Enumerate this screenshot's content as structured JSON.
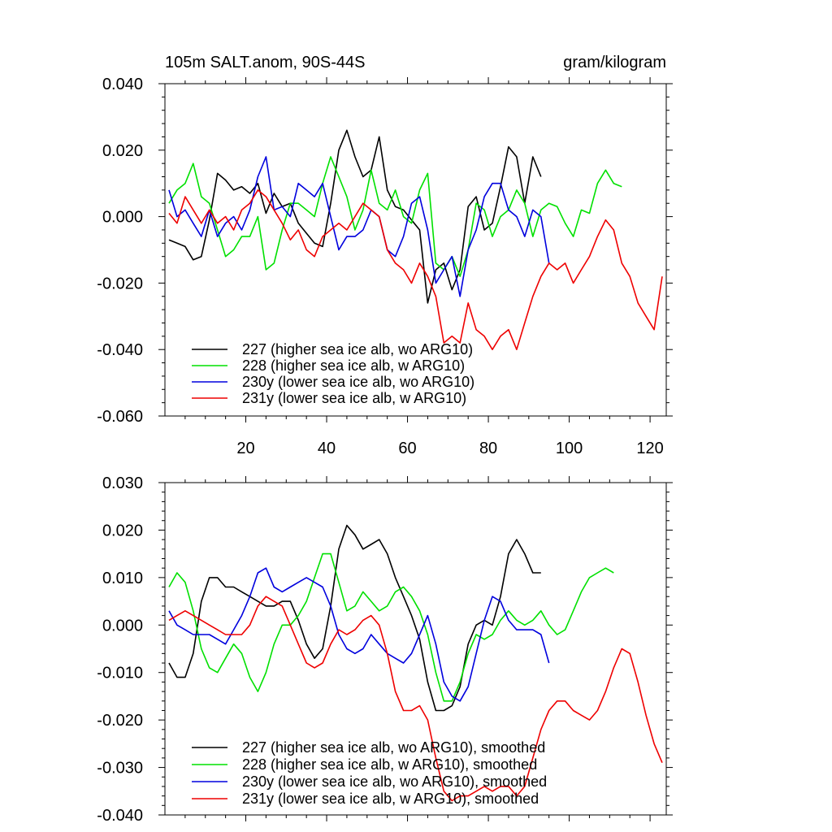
{
  "title_left": "105m SALT.anom, 90S-44S",
  "title_right": "gram/kilogram",
  "chart_data": [
    {
      "type": "line",
      "name": "raw",
      "xlim": [
        0,
        124
      ],
      "ylim": [
        -0.06,
        0.04
      ],
      "yticks": [
        -0.06,
        -0.04,
        -0.02,
        0.0,
        0.02,
        0.04
      ],
      "ytick_labels": [
        "-0.060",
        "-0.040",
        "-0.020",
        "0.000",
        "0.020",
        "0.040"
      ],
      "xticks": [
        20,
        40,
        60,
        80,
        100,
        120
      ],
      "xtick_labels": [
        "20",
        "40",
        "60",
        "80",
        "100",
        "120"
      ],
      "series": [
        {
          "name": "227 (higher sea ice alb, wo ARG10)",
          "color": "#000000",
          "x": [
            1,
            3,
            5,
            7,
            9,
            11,
            13,
            15,
            17,
            19,
            21,
            23,
            25,
            27,
            29,
            31,
            33,
            35,
            37,
            39,
            41,
            43,
            45,
            47,
            49,
            51,
            53,
            55,
            57,
            59,
            61,
            63,
            65,
            67,
            69,
            71,
            73,
            75,
            77,
            79,
            81,
            83,
            85,
            87,
            89,
            91,
            93
          ],
          "y": [
            -0.007,
            -0.008,
            -0.009,
            -0.013,
            -0.012,
            -0.001,
            0.013,
            0.011,
            0.008,
            0.009,
            0.007,
            0.01,
            0.001,
            0.007,
            0.003,
            0.004,
            -0.002,
            -0.005,
            -0.008,
            -0.009,
            0.004,
            0.02,
            0.026,
            0.018,
            0.012,
            0.014,
            0.024,
            0.008,
            0.003,
            0.002,
            -0.001,
            -0.004,
            -0.026,
            -0.016,
            -0.014,
            -0.022,
            -0.016,
            0.003,
            0.006,
            -0.004,
            -0.002,
            0.009,
            0.021,
            0.018,
            0.004,
            0.018,
            0.012
          ]
        },
        {
          "name": "228 (higher sea ice alb, w ARG10)",
          "color": "#00e000",
          "x": [
            1,
            3,
            5,
            7,
            9,
            11,
            13,
            15,
            17,
            19,
            21,
            23,
            25,
            27,
            29,
            31,
            33,
            35,
            37,
            39,
            41,
            43,
            45,
            47,
            49,
            51,
            53,
            55,
            57,
            59,
            61,
            63,
            65,
            67,
            69,
            71,
            73,
            75,
            77,
            79,
            81,
            83,
            85,
            87,
            89,
            91,
            93,
            95,
            97,
            99,
            101,
            103,
            105,
            107,
            109,
            111,
            113
          ],
          "y": [
            0.004,
            0.008,
            0.01,
            0.016,
            0.006,
            0.004,
            -0.004,
            -0.012,
            -0.01,
            -0.006,
            -0.006,
            0.0,
            -0.016,
            -0.014,
            -0.004,
            0.004,
            0.004,
            0.002,
            0.0,
            0.01,
            0.018,
            0.012,
            0.006,
            -0.004,
            0.002,
            0.014,
            0.004,
            0.002,
            0.008,
            0.0,
            -0.002,
            0.008,
            0.013,
            -0.014,
            -0.016,
            -0.012,
            -0.018,
            -0.01,
            0.004,
            0.002,
            -0.006,
            0.0,
            0.002,
            0.008,
            0.004,
            -0.006,
            0.002,
            0.004,
            0.003,
            -0.002,
            -0.006,
            0.002,
            0.001,
            0.01,
            0.014,
            0.01,
            0.009
          ]
        },
        {
          "name": "230y (lower sea ice alb, wo ARG10)",
          "color": "#0000dd",
          "x": [
            1,
            3,
            5,
            7,
            9,
            11,
            13,
            15,
            17,
            19,
            21,
            23,
            25,
            27,
            29,
            31,
            33,
            35,
            37,
            39,
            41,
            43,
            45,
            47,
            49,
            51,
            53,
            55,
            57,
            59,
            61,
            63,
            65,
            67,
            69,
            71,
            73,
            75,
            77,
            79,
            81,
            83,
            85,
            87,
            89,
            91,
            93,
            95
          ],
          "y": [
            0.008,
            0.0,
            0.002,
            -0.002,
            -0.006,
            0.002,
            -0.006,
            -0.002,
            0.0,
            -0.004,
            0.002,
            0.012,
            0.018,
            0.002,
            0.003,
            0.0,
            0.01,
            0.008,
            0.006,
            0.01,
            0.0,
            -0.01,
            -0.006,
            -0.006,
            -0.004,
            0.002,
            0.0,
            -0.01,
            -0.012,
            -0.006,
            0.004,
            0.006,
            -0.004,
            -0.02,
            -0.016,
            -0.012,
            -0.024,
            -0.01,
            -0.004,
            0.006,
            0.01,
            0.01,
            0.002,
            0.0,
            -0.006,
            0.002,
            0.0,
            -0.014
          ]
        },
        {
          "name": "231y (lower sea ice alb, w ARG10)",
          "color": "#ee0000",
          "x": [
            1,
            3,
            5,
            7,
            9,
            11,
            13,
            15,
            17,
            19,
            21,
            23,
            25,
            27,
            29,
            31,
            33,
            35,
            37,
            39,
            41,
            43,
            45,
            47,
            49,
            51,
            53,
            55,
            57,
            59,
            61,
            63,
            65,
            67,
            69,
            71,
            73,
            75,
            77,
            79,
            81,
            83,
            85,
            87,
            89,
            91,
            93,
            95,
            97,
            99,
            101,
            103,
            105,
            107,
            109,
            111,
            113,
            115,
            117,
            119,
            121,
            123
          ],
          "y": [
            0.001,
            -0.002,
            0.006,
            0.002,
            -0.002,
            0.002,
            -0.002,
            0.0,
            -0.004,
            0.002,
            0.004,
            0.008,
            0.006,
            0.002,
            -0.002,
            -0.007,
            -0.004,
            -0.01,
            -0.012,
            -0.006,
            -0.004,
            -0.002,
            -0.004,
            0.0,
            0.004,
            0.002,
            0.0,
            -0.01,
            -0.014,
            -0.016,
            -0.02,
            -0.014,
            -0.018,
            -0.024,
            -0.038,
            -0.036,
            -0.038,
            -0.026,
            -0.034,
            -0.036,
            -0.04,
            -0.036,
            -0.034,
            -0.04,
            -0.032,
            -0.024,
            -0.018,
            -0.014,
            -0.016,
            -0.014,
            -0.02,
            -0.016,
            -0.012,
            -0.006,
            -0.001,
            -0.004,
            -0.014,
            -0.018,
            -0.026,
            -0.03,
            -0.034,
            -0.018
          ]
        }
      ]
    },
    {
      "type": "line",
      "name": "smoothed",
      "xlim": [
        0,
        124
      ],
      "ylim": [
        -0.04,
        0.03
      ],
      "yticks": [
        -0.04,
        -0.03,
        -0.02,
        -0.01,
        0.0,
        0.01,
        0.02,
        0.03
      ],
      "ytick_labels": [
        "-0.040",
        "-0.030",
        "-0.020",
        "-0.010",
        "0.000",
        "0.010",
        "0.020",
        "0.030"
      ],
      "xticks": [
        20,
        40,
        60,
        80,
        100,
        120
      ],
      "xtick_labels": [],
      "series": [
        {
          "name": "227 (higher sea ice alb, wo ARG10), smoothed",
          "color": "#000000",
          "x": [
            1,
            3,
            5,
            7,
            9,
            11,
            13,
            15,
            17,
            19,
            21,
            23,
            25,
            27,
            29,
            31,
            33,
            35,
            37,
            39,
            41,
            43,
            45,
            47,
            49,
            51,
            53,
            55,
            57,
            59,
            61,
            63,
            65,
            67,
            69,
            71,
            73,
            75,
            77,
            79,
            81,
            83,
            85,
            87,
            89,
            91,
            93
          ],
          "y": [
            -0.008,
            -0.011,
            -0.011,
            -0.006,
            0.005,
            0.01,
            0.01,
            0.008,
            0.008,
            0.007,
            0.006,
            0.005,
            0.004,
            0.004,
            0.005,
            0.005,
            0.001,
            -0.004,
            -0.007,
            -0.005,
            0.004,
            0.016,
            0.021,
            0.019,
            0.016,
            0.017,
            0.018,
            0.015,
            0.01,
            0.006,
            0.002,
            -0.003,
            -0.012,
            -0.018,
            -0.018,
            -0.017,
            -0.013,
            -0.004,
            0.0,
            0.001,
            0.0,
            0.006,
            0.015,
            0.018,
            0.015,
            0.011,
            0.011
          ]
        },
        {
          "name": "228 (higher sea ice alb, w ARG10), smoothed",
          "color": "#00e000",
          "x": [
            1,
            3,
            5,
            7,
            9,
            11,
            13,
            15,
            17,
            19,
            21,
            23,
            25,
            27,
            29,
            31,
            33,
            35,
            37,
            39,
            41,
            43,
            45,
            47,
            49,
            51,
            53,
            55,
            57,
            59,
            61,
            63,
            65,
            67,
            69,
            71,
            73,
            75,
            77,
            79,
            81,
            83,
            85,
            87,
            89,
            91,
            93,
            95,
            97,
            99,
            101,
            103,
            105,
            107,
            109,
            111
          ],
          "y": [
            0.008,
            0.011,
            0.009,
            0.003,
            -0.005,
            -0.009,
            -0.01,
            -0.007,
            -0.004,
            -0.006,
            -0.011,
            -0.014,
            -0.01,
            -0.004,
            0.0,
            0.0,
            0.002,
            0.005,
            0.01,
            0.015,
            0.015,
            0.009,
            0.003,
            0.004,
            0.007,
            0.005,
            0.003,
            0.004,
            0.007,
            0.008,
            0.006,
            0.003,
            -0.002,
            -0.01,
            -0.016,
            -0.016,
            -0.012,
            -0.006,
            -0.002,
            -0.003,
            -0.002,
            0.001,
            0.003,
            0.001,
            0.0,
            0.001,
            0.003,
            0.0,
            -0.002,
            -0.001,
            0.003,
            0.007,
            0.01,
            0.011,
            0.012,
            0.011
          ]
        },
        {
          "name": "230y (lower sea ice alb, wo ARG10), smoothed",
          "color": "#0000dd",
          "x": [
            1,
            3,
            5,
            7,
            9,
            11,
            13,
            15,
            17,
            19,
            21,
            23,
            25,
            27,
            29,
            31,
            33,
            35,
            37,
            39,
            41,
            43,
            45,
            47,
            49,
            51,
            53,
            55,
            57,
            59,
            61,
            63,
            65,
            67,
            69,
            71,
            73,
            75,
            77,
            79,
            81,
            83,
            85,
            87,
            89,
            91,
            93,
            95
          ],
          "y": [
            0.003,
            0.0,
            -0.001,
            -0.002,
            -0.002,
            -0.002,
            -0.003,
            -0.004,
            -0.001,
            0.002,
            0.006,
            0.011,
            0.012,
            0.008,
            0.007,
            0.008,
            0.009,
            0.01,
            0.009,
            0.008,
            0.004,
            -0.002,
            -0.005,
            -0.006,
            -0.005,
            -0.002,
            -0.004,
            -0.006,
            -0.007,
            -0.008,
            -0.006,
            -0.002,
            0.002,
            -0.004,
            -0.012,
            -0.015,
            -0.016,
            -0.013,
            -0.006,
            0.001,
            0.006,
            0.005,
            0.001,
            -0.001,
            -0.001,
            -0.001,
            -0.002,
            -0.008
          ]
        },
        {
          "name": "231y (lower sea ice alb, w ARG10), smoothed",
          "color": "#ee0000",
          "x": [
            1,
            3,
            5,
            7,
            9,
            11,
            13,
            15,
            17,
            19,
            21,
            23,
            25,
            27,
            29,
            31,
            33,
            35,
            37,
            39,
            41,
            43,
            45,
            47,
            49,
            51,
            53,
            55,
            57,
            59,
            61,
            63,
            65,
            67,
            69,
            71,
            73,
            75,
            77,
            79,
            81,
            83,
            85,
            87,
            89,
            91,
            93,
            95,
            97,
            99,
            101,
            103,
            105,
            107,
            109,
            111,
            113,
            115,
            117,
            119,
            121,
            123
          ],
          "y": [
            0.001,
            0.002,
            0.003,
            0.002,
            0.001,
            0.0,
            -0.001,
            -0.002,
            -0.002,
            -0.002,
            0.0,
            0.004,
            0.006,
            0.005,
            0.004,
            0.0,
            -0.004,
            -0.008,
            -0.009,
            -0.008,
            -0.004,
            -0.001,
            -0.002,
            -0.001,
            0.001,
            0.002,
            0.0,
            -0.006,
            -0.014,
            -0.018,
            -0.018,
            -0.017,
            -0.02,
            -0.028,
            -0.035,
            -0.037,
            -0.036,
            -0.036,
            -0.035,
            -0.034,
            -0.035,
            -0.034,
            -0.034,
            -0.036,
            -0.034,
            -0.028,
            -0.022,
            -0.018,
            -0.016,
            -0.016,
            -0.018,
            -0.019,
            -0.02,
            -0.018,
            -0.014,
            -0.009,
            -0.005,
            -0.006,
            -0.012,
            -0.019,
            -0.025,
            -0.029
          ]
        }
      ]
    }
  ]
}
